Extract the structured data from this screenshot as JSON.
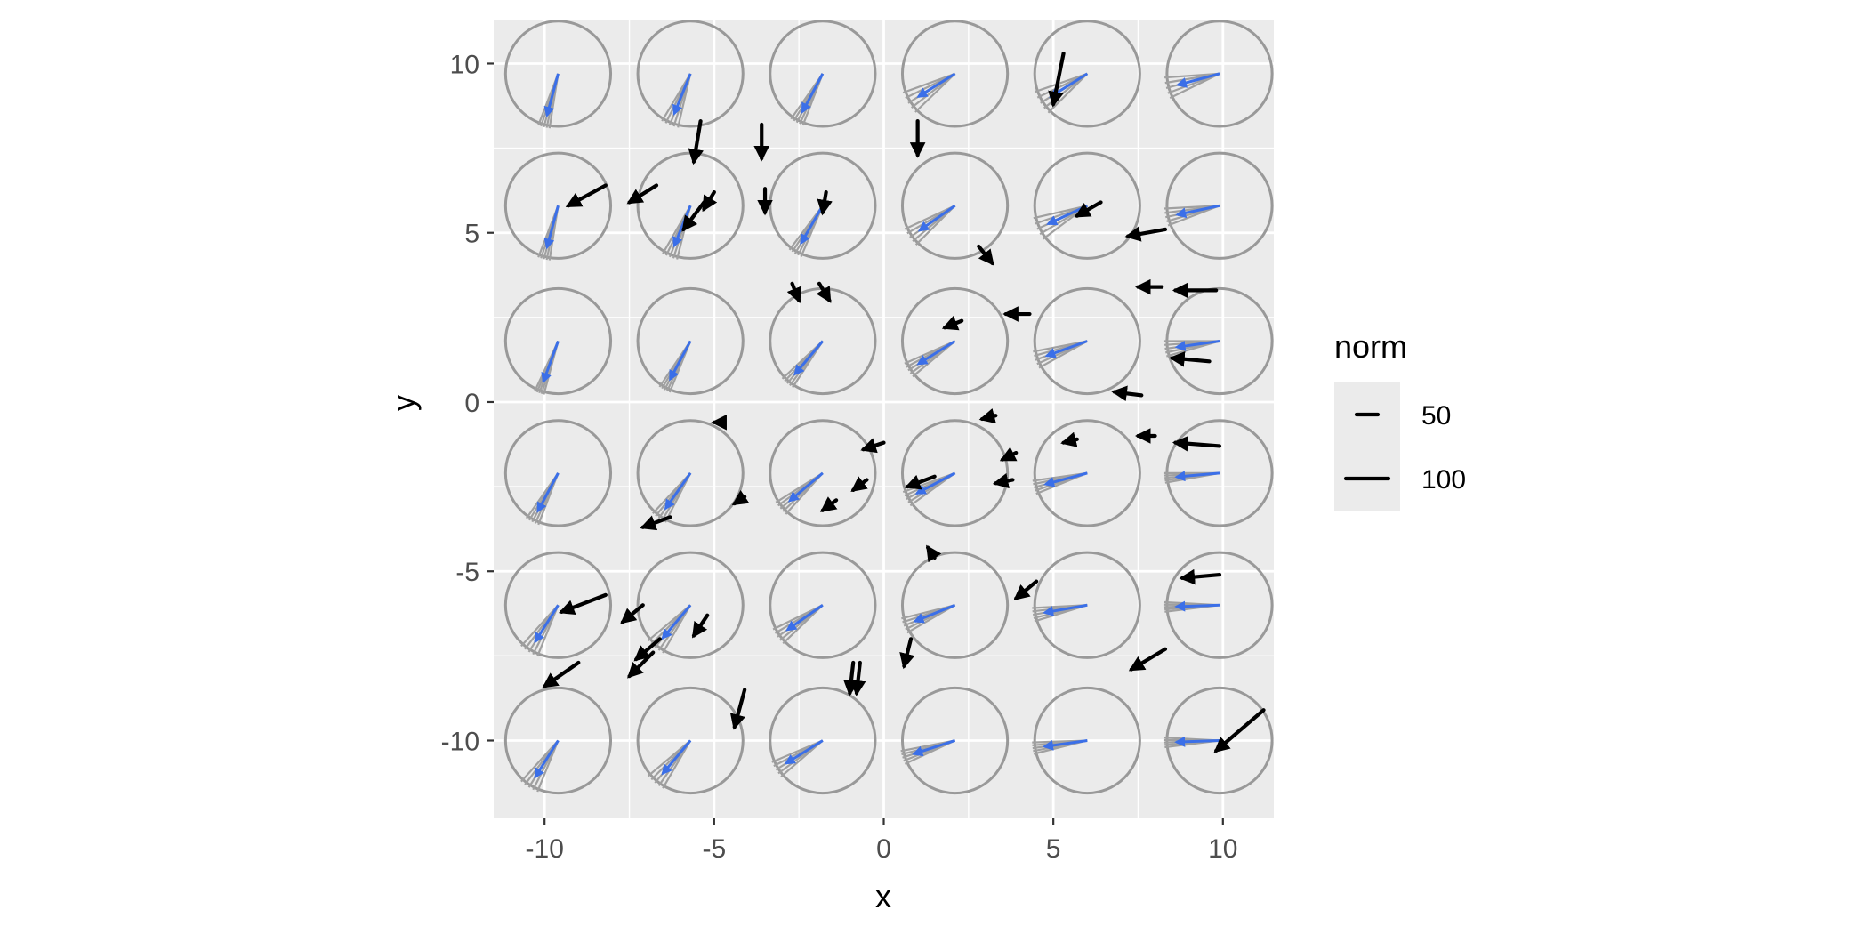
{
  "chart_data": {
    "type": "scatter",
    "subtype": "vector field with circular glyphs",
    "title": "",
    "xlabel": "x",
    "ylabel": "y",
    "xlim": [
      -11.5,
      11.5
    ],
    "ylim": [
      -12.3,
      11.3
    ],
    "x_ticks": [
      -10,
      -5,
      0,
      5,
      10
    ],
    "x_tick_labels": [
      "-10",
      "-5",
      "0",
      "5",
      "10"
    ],
    "y_ticks": [
      -10,
      -5,
      0,
      5,
      10
    ],
    "y_tick_labels": [
      "-10",
      "-5",
      "0",
      "5",
      "10"
    ],
    "grid": true,
    "legend": {
      "title": "norm",
      "position": "right",
      "entries": [
        {
          "label": "50",
          "value": 50
        },
        {
          "label": "100",
          "value": 100
        }
      ]
    },
    "colors": {
      "panel": "#ebebeb",
      "grid": "#ffffff",
      "circle": "#999999",
      "fan": "#a0a0a0",
      "mean_arrow": "#3b6fe8",
      "field_arrow": "#000000"
    },
    "glyphs": {
      "x_centers": [
        -9.6,
        -5.7,
        -1.8,
        2.1,
        6.0,
        9.9
      ],
      "y_centers": [
        9.7,
        5.8,
        1.8,
        -2.1,
        -6.0,
        -10.0
      ],
      "radius": 1.55,
      "cells": [
        {
          "x": -9.6,
          "y": 9.7,
          "mean_angle": -105,
          "spread": 12
        },
        {
          "x": -5.7,
          "y": 9.7,
          "mean_angle": -112,
          "spread": 18
        },
        {
          "x": -1.8,
          "y": 9.7,
          "mean_angle": -118,
          "spread": 14
        },
        {
          "x": 2.1,
          "y": 9.7,
          "mean_angle": -148,
          "spread": 24
        },
        {
          "x": 6.0,
          "y": 9.7,
          "mean_angle": -148,
          "spread": 26
        },
        {
          "x": 9.9,
          "y": 9.7,
          "mean_angle": -165,
          "spread": 22
        },
        {
          "x": -9.6,
          "y": 5.8,
          "mean_angle": -105,
          "spread": 12
        },
        {
          "x": -5.7,
          "y": 5.8,
          "mean_angle": -112,
          "spread": 16
        },
        {
          "x": -1.8,
          "y": 5.8,
          "mean_angle": -120,
          "spread": 14
        },
        {
          "x": 2.1,
          "y": 5.8,
          "mean_angle": -145,
          "spread": 20
        },
        {
          "x": 6.0,
          "y": 5.8,
          "mean_angle": -155,
          "spread": 24
        },
        {
          "x": 9.9,
          "y": 5.8,
          "mean_angle": -168,
          "spread": 18
        },
        {
          "x": -9.6,
          "y": 1.8,
          "mean_angle": -110,
          "spread": 10
        },
        {
          "x": -5.7,
          "y": 1.8,
          "mean_angle": -118,
          "spread": 12
        },
        {
          "x": -1.8,
          "y": 1.8,
          "mean_angle": -130,
          "spread": 14
        },
        {
          "x": 2.1,
          "y": 1.8,
          "mean_angle": -148,
          "spread": 16
        },
        {
          "x": 6.0,
          "y": 1.8,
          "mean_angle": -160,
          "spread": 18
        },
        {
          "x": 9.9,
          "y": 1.8,
          "mean_angle": -172,
          "spread": 16
        },
        {
          "x": -9.6,
          "y": -2.1,
          "mean_angle": -118,
          "spread": 14
        },
        {
          "x": -5.7,
          "y": -2.1,
          "mean_angle": -125,
          "spread": 16
        },
        {
          "x": -1.8,
          "y": -2.1,
          "mean_angle": -140,
          "spread": 16
        },
        {
          "x": 2.1,
          "y": -2.1,
          "mean_angle": -152,
          "spread": 16
        },
        {
          "x": 6.0,
          "y": -2.1,
          "mean_angle": -165,
          "spread": 14
        },
        {
          "x": 9.9,
          "y": -2.1,
          "mean_angle": -175,
          "spread": 10
        },
        {
          "x": -9.6,
          "y": -6.0,
          "mean_angle": -122,
          "spread": 20
        },
        {
          "x": -5.7,
          "y": -6.0,
          "mean_angle": -130,
          "spread": 20
        },
        {
          "x": -1.8,
          "y": -6.0,
          "mean_angle": -145,
          "spread": 18
        },
        {
          "x": 2.1,
          "y": -6.0,
          "mean_angle": -158,
          "spread": 16
        },
        {
          "x": 6.0,
          "y": -6.0,
          "mean_angle": -170,
          "spread": 14
        },
        {
          "x": 9.9,
          "y": -6.0,
          "mean_angle": -178,
          "spread": 10
        },
        {
          "x": -9.6,
          "y": -10.0,
          "mean_angle": -122,
          "spread": 20
        },
        {
          "x": -5.7,
          "y": -10.0,
          "mean_angle": -130,
          "spread": 20
        },
        {
          "x": -1.8,
          "y": -10.0,
          "mean_angle": -148,
          "spread": 18
        },
        {
          "x": 2.1,
          "y": -10.0,
          "mean_angle": -162,
          "spread": 14
        },
        {
          "x": 6.0,
          "y": -10.0,
          "mean_angle": -172,
          "spread": 12
        },
        {
          "x": 9.9,
          "y": -10.0,
          "mean_angle": -178,
          "spread": 10
        }
      ]
    },
    "vectors": [
      {
        "x": 5.3,
        "y": 10.3,
        "xend": 5.0,
        "yend": 8.8
      },
      {
        "x": -5.4,
        "y": 8.3,
        "xend": -5.6,
        "yend": 7.1
      },
      {
        "x": -3.6,
        "y": 8.2,
        "xend": -3.6,
        "yend": 7.2
      },
      {
        "x": 1.0,
        "y": 8.3,
        "xend": 1.0,
        "yend": 7.3
      },
      {
        "x": -8.2,
        "y": 6.4,
        "xend": -9.3,
        "yend": 5.8
      },
      {
        "x": -6.7,
        "y": 6.4,
        "xend": -7.5,
        "yend": 5.9
      },
      {
        "x": -5.0,
        "y": 6.2,
        "xend": -5.3,
        "yend": 5.7
      },
      {
        "x": -5.3,
        "y": 5.9,
        "xend": -5.9,
        "yend": 5.1
      },
      {
        "x": -3.5,
        "y": 6.3,
        "xend": -3.5,
        "yend": 5.6
      },
      {
        "x": -1.7,
        "y": 6.2,
        "xend": -1.8,
        "yend": 5.6
      },
      {
        "x": 6.4,
        "y": 5.9,
        "xend": 5.7,
        "yend": 5.5
      },
      {
        "x": 8.3,
        "y": 5.1,
        "xend": 7.2,
        "yend": 4.9
      },
      {
        "x": 2.8,
        "y": 4.6,
        "xend": 3.2,
        "yend": 4.1
      },
      {
        "x": -2.7,
        "y": 3.5,
        "xend": -2.5,
        "yend": 3.0
      },
      {
        "x": -1.9,
        "y": 3.5,
        "xend": -1.6,
        "yend": 3.0
      },
      {
        "x": 8.2,
        "y": 3.4,
        "xend": 7.5,
        "yend": 3.4
      },
      {
        "x": 9.8,
        "y": 3.3,
        "xend": 8.6,
        "yend": 3.3
      },
      {
        "x": 2.3,
        "y": 2.4,
        "xend": 1.8,
        "yend": 2.2
      },
      {
        "x": 4.3,
        "y": 2.6,
        "xend": 3.6,
        "yend": 2.6
      },
      {
        "x": 9.6,
        "y": 1.2,
        "xend": 8.5,
        "yend": 1.3
      },
      {
        "x": 7.6,
        "y": 0.2,
        "xend": 6.8,
        "yend": 0.3
      },
      {
        "x": -4.7,
        "y": -0.6,
        "xend": -5.0,
        "yend": -0.6
      },
      {
        "x": 3.3,
        "y": -0.4,
        "xend": 2.9,
        "yend": -0.5
      },
      {
        "x": 5.7,
        "y": -1.1,
        "xend": 5.3,
        "yend": -1.2
      },
      {
        "x": 8.0,
        "y": -1.0,
        "xend": 7.5,
        "yend": -1.0
      },
      {
        "x": 9.9,
        "y": -1.3,
        "xend": 8.6,
        "yend": -1.2
      },
      {
        "x": 0.0,
        "y": -1.2,
        "xend": -0.6,
        "yend": -1.4
      },
      {
        "x": 3.9,
        "y": -1.5,
        "xend": 3.5,
        "yend": -1.7
      },
      {
        "x": -0.5,
        "y": -2.3,
        "xend": -0.9,
        "yend": -2.6
      },
      {
        "x": 1.5,
        "y": -2.2,
        "xend": 0.7,
        "yend": -2.5
      },
      {
        "x": 3.8,
        "y": -2.3,
        "xend": 3.3,
        "yend": -2.4
      },
      {
        "x": -4.1,
        "y": -2.8,
        "xend": -4.4,
        "yend": -3.0
      },
      {
        "x": -1.4,
        "y": -2.9,
        "xend": -1.8,
        "yend": -3.2
      },
      {
        "x": -6.3,
        "y": -3.4,
        "xend": -7.1,
        "yend": -3.7
      },
      {
        "x": 1.5,
        "y": -4.6,
        "xend": 1.3,
        "yend": -4.3
      },
      {
        "x": 4.5,
        "y": -5.3,
        "xend": 3.9,
        "yend": -5.8
      },
      {
        "x": 9.9,
        "y": -5.1,
        "xend": 8.8,
        "yend": -5.2
      },
      {
        "x": -8.2,
        "y": -5.7,
        "xend": -9.5,
        "yend": -6.2
      },
      {
        "x": -7.1,
        "y": -6.0,
        "xend": -7.7,
        "yend": -6.5
      },
      {
        "x": -5.2,
        "y": -6.3,
        "xend": -5.6,
        "yend": -6.9
      },
      {
        "x": -6.6,
        "y": -7.0,
        "xend": -7.3,
        "yend": -7.6
      },
      {
        "x": -6.8,
        "y": -7.4,
        "xend": -7.5,
        "yend": -8.1
      },
      {
        "x": 0.8,
        "y": -7.0,
        "xend": 0.6,
        "yend": -7.8
      },
      {
        "x": 8.3,
        "y": -7.3,
        "xend": 7.3,
        "yend": -7.9
      },
      {
        "x": -9.0,
        "y": -7.7,
        "xend": -10.0,
        "yend": -8.4
      },
      {
        "x": -0.9,
        "y": -7.7,
        "xend": -1.0,
        "yend": -8.6
      },
      {
        "x": -0.7,
        "y": -7.7,
        "xend": -0.8,
        "yend": -8.6
      },
      {
        "x": -4.1,
        "y": -8.5,
        "xend": -4.4,
        "yend": -9.6
      },
      {
        "x": 11.2,
        "y": -9.1,
        "xend": 9.8,
        "yend": -10.3
      }
    ]
  }
}
